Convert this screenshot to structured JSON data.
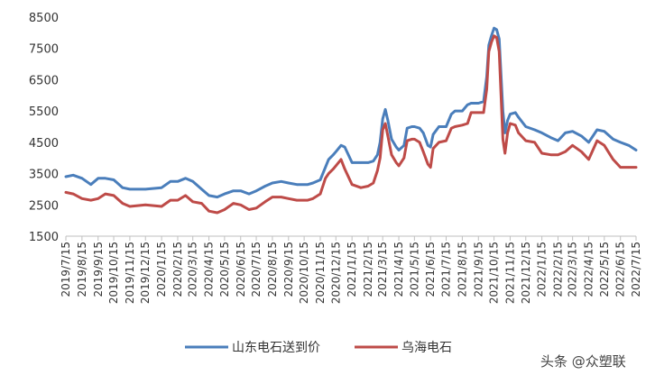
{
  "chart_data": {
    "type": "line",
    "title": "",
    "xlabel": "",
    "ylabel": "",
    "ylim": [
      1500,
      8500
    ],
    "yticks": [
      1500,
      2500,
      3500,
      4500,
      5500,
      6500,
      7500,
      8500
    ],
    "grid": false,
    "legend_position": "bottom",
    "x_tick_labels": [
      "2019/7/15",
      "2019/8/15",
      "2019/9/15",
      "2019/10/15",
      "2019/11/15",
      "2019/12/15",
      "2020/1/15",
      "2020/2/15",
      "2020/3/15",
      "2020/4/15",
      "2020/5/15",
      "2020/6/15",
      "2020/7/15",
      "2020/8/15",
      "2020/9/15",
      "2020/10/15",
      "2020/11/15",
      "2020/12/15",
      "2021/1/15",
      "2021/2/15",
      "2021/3/15",
      "2021/4/15",
      "2021/5/15",
      "2021/6/15",
      "2021/7/15",
      "2021/8/15",
      "2021/9/15",
      "2021/10/15",
      "2021/11/15",
      "2021/12/15",
      "2022/1/15",
      "2022/2/15",
      "2022/3/15",
      "2022/4/15",
      "2022/5/15",
      "2022/6/15",
      "2022/7/15"
    ],
    "x_dates_of_points": [
      "2019/7/15",
      "2019/7/29",
      "2019/8/15",
      "2019/9/1",
      "2019/9/15",
      "2019/9/29",
      "2019/10/15",
      "2019/11/1",
      "2019/11/15",
      "2019/12/15",
      "2020/1/15",
      "2020/2/1",
      "2020/2/15",
      "2020/3/1",
      "2020/3/15",
      "2020/4/1",
      "2020/4/15",
      "2020/5/1",
      "2020/5/15",
      "2020/6/1",
      "2020/6/15",
      "2020/7/1",
      "2020/7/15",
      "2020/8/1",
      "2020/8/15",
      "2020/9/1",
      "2020/9/15",
      "2020/10/1",
      "2020/10/15",
      "2020/10/22",
      "2020/11/1",
      "2020/11/15",
      "2020/11/25",
      "2020/12/1",
      "2020/12/10",
      "2020/12/15",
      "2020/12/25",
      "2021/1/1",
      "2021/1/15",
      "2021/2/1",
      "2021/2/15",
      "2021/2/25",
      "2021/3/5",
      "2021/3/10",
      "2021/3/15",
      "2021/3/20",
      "2021/3/25",
      "2021/4/1",
      "2021/4/10",
      "2021/4/15",
      "2021/4/25",
      "2021/5/1",
      "2021/5/10",
      "2021/5/15",
      "2021/5/25",
      "2021/6/1",
      "2021/6/10",
      "2021/6/15",
      "2021/6/20",
      "2021/7/1",
      "2021/7/15",
      "2021/7/25",
      "2021/8/1",
      "2021/8/15",
      "2021/8/25",
      "2021/9/1",
      "2021/9/15",
      "2021/9/25",
      "2021/10/1",
      "2021/10/5",
      "2021/10/10",
      "2021/10/15",
      "2021/10/20",
      "2021/10/25",
      "2021/11/1",
      "2021/11/5",
      "2021/11/10",
      "2021/11/15",
      "2021/11/25",
      "2021/12/1",
      "2021/12/15",
      "2022/1/1",
      "2022/1/15",
      "2022/2/1",
      "2022/2/15",
      "2022/3/1",
      "2022/3/15",
      "2022/4/1",
      "2022/4/15",
      "2022/5/1",
      "2022/5/15",
      "2022/6/1",
      "2022/6/15",
      "2022/7/1",
      "2022/7/15"
    ],
    "series": [
      {
        "name": "山东电石送到价",
        "color": "#4a7ebb",
        "values": [
          3400,
          3450,
          3350,
          3150,
          3350,
          3350,
          3300,
          3050,
          3000,
          3000,
          3050,
          3250,
          3250,
          3350,
          3250,
          3000,
          2800,
          2750,
          2850,
          2950,
          2950,
          2850,
          2950,
          3100,
          3200,
          3250,
          3200,
          3150,
          3150,
          3150,
          3200,
          3300,
          3700,
          3950,
          4100,
          4200,
          4400,
          4350,
          3850,
          3850,
          3850,
          3900,
          4100,
          4500,
          5250,
          5550,
          5200,
          4600,
          4350,
          4250,
          4400,
          4950,
          5000,
          5000,
          4950,
          4800,
          4400,
          4350,
          4750,
          5000,
          5000,
          5400,
          5500,
          5500,
          5700,
          5750,
          5750,
          5800,
          6600,
          7600,
          7900,
          8150,
          8100,
          7800,
          5500,
          4800,
          5200,
          5400,
          5450,
          5300,
          5000,
          4900,
          4800,
          4650,
          4550,
          4800,
          4850,
          4700,
          4500,
          4900,
          4850,
          4600,
          4500,
          4400,
          4250
        ]
      },
      {
        "name": "乌海电石",
        "color": "#be4b48",
        "values": [
          2900,
          2850,
          2700,
          2650,
          2700,
          2850,
          2800,
          2550,
          2450,
          2500,
          2450,
          2650,
          2650,
          2800,
          2600,
          2550,
          2300,
          2250,
          2350,
          2550,
          2500,
          2350,
          2400,
          2600,
          2750,
          2750,
          2700,
          2650,
          2650,
          2650,
          2700,
          2850,
          3350,
          3500,
          3650,
          3750,
          3950,
          3650,
          3150,
          3050,
          3100,
          3200,
          3600,
          4000,
          4900,
          5100,
          4700,
          4100,
          3850,
          3750,
          4000,
          4550,
          4600,
          4600,
          4500,
          4200,
          3800,
          3700,
          4300,
          4500,
          4550,
          4950,
          5000,
          5050,
          5100,
          5450,
          5450,
          5450,
          6200,
          7400,
          7700,
          7900,
          7850,
          7400,
          4600,
          4150,
          4800,
          5100,
          5050,
          4800,
          4550,
          4500,
          4150,
          4100,
          4100,
          4200,
          4400,
          4200,
          3950,
          4550,
          4400,
          3950,
          3700,
          3700,
          3700
        ]
      }
    ]
  },
  "watermark": "头条 @众塑联"
}
